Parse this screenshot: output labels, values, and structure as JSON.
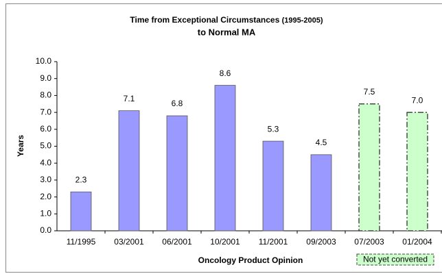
{
  "chart_data": {
    "type": "bar",
    "title": {
      "main": "Time from Exceptional Circumstances",
      "years": "(1995-2005)",
      "line2": "to Normal MA"
    },
    "x_label": "Oncology Product Opinion",
    "y_label": "Years",
    "categories": [
      "11/1995",
      "03/2001",
      "06/2001",
      "10/2001",
      "11/2001",
      "09/2003",
      "07/2003",
      "01/2004"
    ],
    "series": [
      {
        "color": "#9999ff",
        "dashed": false,
        "values": [
          2.3,
          7.1,
          6.8,
          8.6,
          5.3,
          4.5,
          null,
          null
        ],
        "value_labels": [
          "2.3",
          "7.1",
          "6.8",
          "8.6",
          "5.3",
          "4.5",
          null,
          null
        ]
      },
      {
        "name": "Not yet converted",
        "color": "#ccffcc",
        "dashed": true,
        "values": [
          null,
          null,
          null,
          null,
          null,
          null,
          7.5,
          7.0
        ],
        "value_labels": [
          null,
          null,
          null,
          null,
          null,
          null,
          "7.5",
          "7.0"
        ]
      }
    ],
    "ylim": [
      0,
      10
    ],
    "yticks": [
      {
        "value": 0,
        "label": "0.0"
      },
      {
        "value": 1,
        "label": "1.0"
      },
      {
        "value": 2,
        "label": "2.0"
      },
      {
        "value": 3,
        "label": "3.0"
      },
      {
        "value": 4,
        "label": "4.0"
      },
      {
        "value": 5,
        "label": "5.0"
      },
      {
        "value": 6,
        "label": "6.0"
      },
      {
        "value": 7,
        "label": "7.0"
      },
      {
        "value": 8,
        "label": "8.0"
      },
      {
        "value": 9,
        "label": "9.0"
      },
      {
        "value": 10,
        "label": "10.0"
      }
    ],
    "grid": false
  }
}
